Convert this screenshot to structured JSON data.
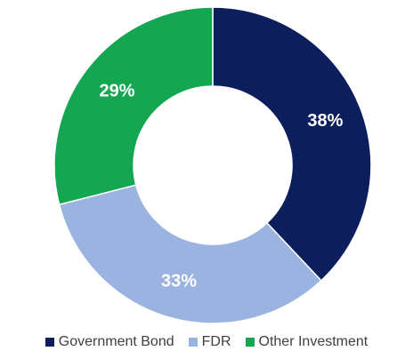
{
  "chart_data": {
    "type": "pie",
    "style": "donut",
    "categories": [
      "Government Bond",
      "FDR",
      "Other Investment"
    ],
    "values": [
      38,
      33,
      29
    ],
    "labels": [
      "38%",
      "33%",
      "29%"
    ],
    "colors": [
      "#0c1f5c",
      "#9bb3e0",
      "#14a651"
    ],
    "start": "12 o'clock, clockwise",
    "legend_placement": "bottom"
  }
}
